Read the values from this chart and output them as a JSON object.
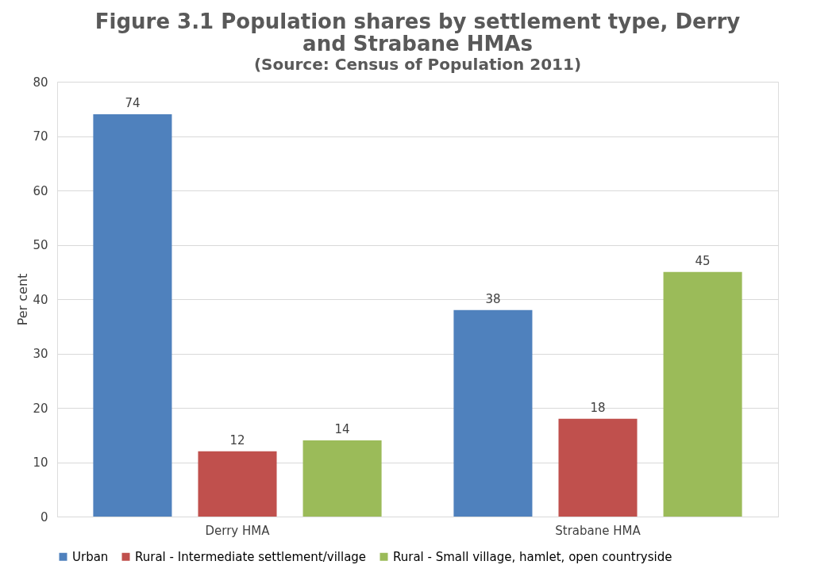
{
  "chart_data": {
    "type": "bar",
    "title": "Figure 3.1 Population shares by settlement type, Derry and Strabane HMAs",
    "annotations": [
      "(Source: Census of Population 2011)"
    ],
    "ylabel": "Per cent",
    "categories": [
      "Derry HMA",
      "Strabane HMA"
    ],
    "series": [
      {
        "name": "Urban",
        "color": "#4f81bd",
        "values": [
          74,
          38
        ]
      },
      {
        "name": "Rural - Intermediate settlement/village",
        "color": "#c0504d",
        "values": [
          12,
          18
        ]
      },
      {
        "name": "Rural - Small village, hamlet, open countryside",
        "color": "#9bbb59",
        "values": [
          14,
          45
        ]
      }
    ],
    "ylim": [
      0,
      80
    ],
    "yticks": [
      0,
      10,
      20,
      30,
      40,
      50,
      60,
      70,
      80
    ],
    "grid": "y",
    "legend": "bottom",
    "data_labels": true
  }
}
